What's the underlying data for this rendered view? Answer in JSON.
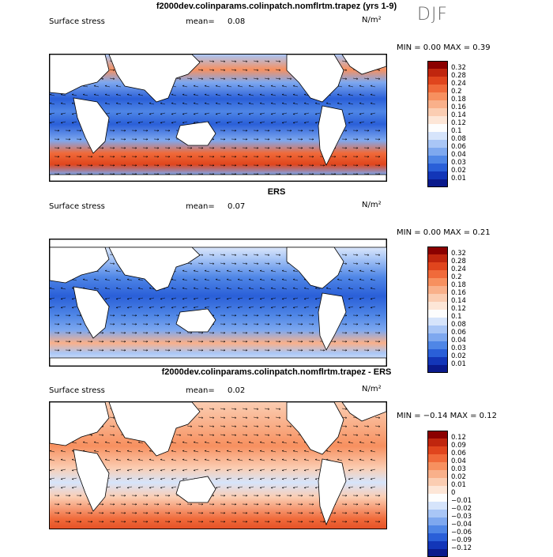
{
  "season": "DJF",
  "panels": [
    {
      "title": "f2000dev.colinparams.colinpatch.nomflrtm.trapez (yrs 1-9)",
      "field": "Surface stress",
      "mean_label": "mean=",
      "mean": "0.08",
      "units": "N/m²",
      "range_text": "MIN =    0.00 MAX =    0.39",
      "colorbar": {
        "ticks": [
          "0.32",
          "0.28",
          "0.24",
          "0.2",
          "0.18",
          "0.16",
          "0.14",
          "0.12",
          "0.1",
          "0.08",
          "0.06",
          "0.04",
          "0.03",
          "0.02",
          "0.01"
        ],
        "colors": [
          "#8b0000",
          "#c0260e",
          "#e0451d",
          "#f06a3a",
          "#f7905f",
          "#f9b08a",
          "#fbcdb2",
          "#fde6d7",
          "#fdfdfd",
          "#d6e4fb",
          "#a9c6f6",
          "#7ea8ef",
          "#4f86e6",
          "#2a5fd8",
          "#1336b8",
          "#0a1a8c"
        ]
      }
    },
    {
      "title": "ERS",
      "field": "Surface stress",
      "mean_label": "mean=",
      "mean": "0.07",
      "units": "N/m²",
      "range_text": "MIN =    0.00 MAX =    0.21",
      "colorbar": {
        "ticks": [
          "0.32",
          "0.28",
          "0.24",
          "0.2",
          "0.18",
          "0.16",
          "0.14",
          "0.12",
          "0.1",
          "0.08",
          "0.06",
          "0.04",
          "0.03",
          "0.02",
          "0.01"
        ],
        "colors": [
          "#8b0000",
          "#c0260e",
          "#e0451d",
          "#f06a3a",
          "#f7905f",
          "#f9b08a",
          "#fbcdb2",
          "#fde6d7",
          "#fdfdfd",
          "#d6e4fb",
          "#a9c6f6",
          "#7ea8ef",
          "#4f86e6",
          "#2a5fd8",
          "#1336b8",
          "#0a1a8c"
        ]
      }
    },
    {
      "title": "f2000dev.colinparams.colinpatch.nomflrtm.trapez - ERS",
      "field": "Surface stress",
      "mean_label": "mean=",
      "mean": "0.02",
      "units": "N/m²",
      "range_text": "MIN =  −0.14 MAX =    0.12",
      "colorbar": {
        "ticks": [
          "0.12",
          "0.09",
          "0.06",
          "0.04",
          "0.03",
          "0.02",
          "0.01",
          "0",
          "−0.01",
          "−0.02",
          "−0.03",
          "−0.04",
          "−0.06",
          "−0.09",
          "−0.12"
        ],
        "colors": [
          "#8b0000",
          "#c0260e",
          "#e0451d",
          "#f06a3a",
          "#f7905f",
          "#f9b08a",
          "#fbcdb2",
          "#fde6d7",
          "#fdfdfd",
          "#d6e4fb",
          "#a9c6f6",
          "#7ea8ef",
          "#4f86e6",
          "#2a5fd8",
          "#1336b8",
          "#0a1a8c"
        ]
      }
    }
  ]
}
